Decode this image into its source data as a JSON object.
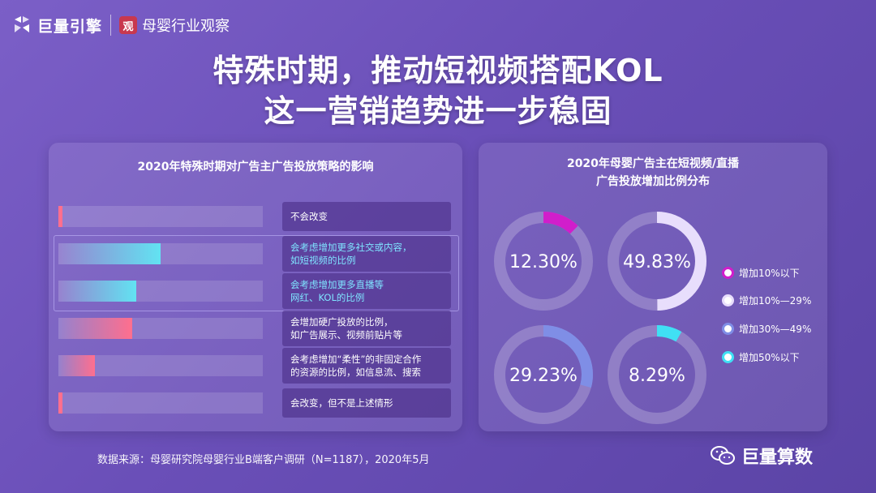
{
  "brand": {
    "logo_primary": "巨量引擎",
    "logo_secondary": "母婴行业观察",
    "seal_char": "观"
  },
  "title": {
    "line1": "特殊时期，推动短视频搭配KOL",
    "line2": "这一营销趋势进一步稳固"
  },
  "left_panel": {
    "title": "2020年特殊时期对广告主广告投放策略的影响"
  },
  "right_panel": {
    "title_line1": "2020年母婴广告主在短视频/直播",
    "title_line2": "广告投放增加比例分布"
  },
  "chart_data": [
    {
      "type": "bar",
      "orientation": "horizontal",
      "categories": [
        [
          "不会改变",
          ""
        ],
        [
          "会考虑增加更多社交或内容，",
          "如短视频的比例"
        ],
        [
          "会考虑增加更多直播等",
          "网红、KOL的比例"
        ],
        [
          "会增加硬广投放的比例，",
          "如广告展示、视频前贴片等"
        ],
        [
          "会考虑增加“柔性”的非固定合作",
          "的资源的比例，如信息流、搜索"
        ],
        [
          "会改变，但不是上述情形",
          ""
        ]
      ],
      "values": [
        2,
        50,
        38,
        36,
        18,
        2
      ],
      "highlighted": [
        false,
        true,
        true,
        false,
        false,
        false
      ],
      "xlim": [
        0,
        100
      ],
      "colors": {
        "pink": "#ff6f8e",
        "cyan": "#62e3f2",
        "track": "rgba(255,255,255,0.14)"
      }
    },
    {
      "type": "pie",
      "style": "donut",
      "series": [
        {
          "name": "增加10%以下",
          "value": 12.3,
          "label": "12.30%",
          "color": "#d11ecb"
        },
        {
          "name": "增加10%—29%",
          "value": 49.83,
          "label": "49.83%",
          "color": "#e8defc"
        },
        {
          "name": "增加30%—49%",
          "value": 29.23,
          "label": "29.23%",
          "color": "#7f8ee6"
        },
        {
          "name": "增加50%以下",
          "value": 8.29,
          "label": "8.29%",
          "color": "#40e0f4"
        }
      ],
      "ring_color": "rgba(255,255,255,0.22)",
      "legend_position": "right"
    }
  ],
  "footer": {
    "source": "数据来源：母婴研究院母婴行业B端客户调研（N=1187），2020年5月",
    "account": "巨量算数"
  }
}
